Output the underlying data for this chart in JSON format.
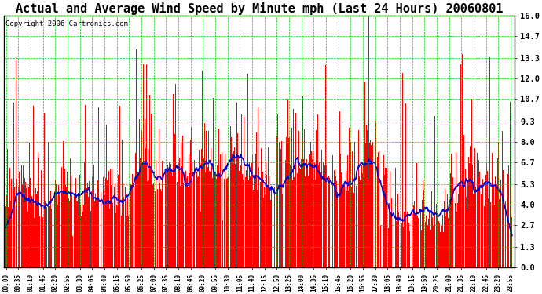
{
  "title": "Actual and Average Wind Speed by Minute mph (Last 24 Hours) 20060801",
  "copyright": "Copyright 2006 Cartronics.com",
  "yticks": [
    0.0,
    1.3,
    2.7,
    4.0,
    5.3,
    6.7,
    8.0,
    9.3,
    10.7,
    12.0,
    13.3,
    14.7,
    16.0
  ],
  "ylim": [
    0.0,
    16.0
  ],
  "bar_color": "#FF0000",
  "line_color": "#0000CC",
  "grid_color": "#00CC00",
  "bg_color": "#FFFFFF",
  "title_fontsize": 11,
  "copyright_fontsize": 6.5
}
